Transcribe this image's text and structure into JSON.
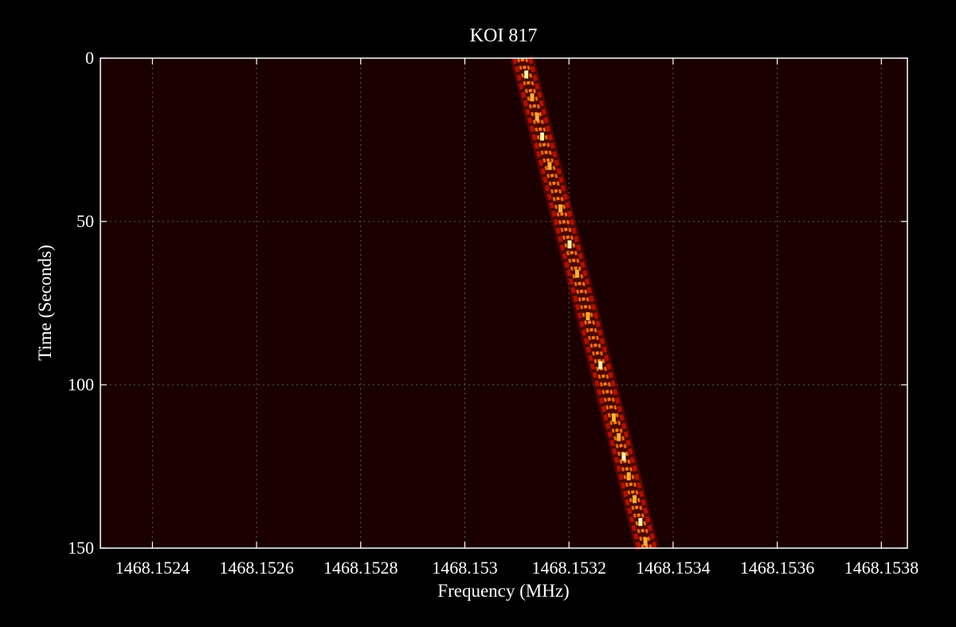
{
  "chart_data": {
    "type": "heatmap",
    "title": "KOI 817",
    "xlabel": "Frequency (MHz)",
    "ylabel": "Time (Seconds)",
    "xlim": [
      1468.1523,
      1468.15385
    ],
    "ylim": [
      0,
      150
    ],
    "y_inverted": true,
    "x_ticks": [
      1468.1524,
      1468.1526,
      1468.1528,
      1468.153,
      1468.1532,
      1468.1534,
      1468.1536,
      1468.1538
    ],
    "x_tick_labels": [
      "1468.1524",
      "1468.1526",
      "1468.1528",
      "1468.153",
      "1468.1532",
      "1468.1534",
      "1468.1536",
      "1468.1538"
    ],
    "y_ticks": [
      0,
      50,
      100,
      150
    ],
    "y_tick_labels": [
      "0",
      "50",
      "100",
      "150"
    ],
    "grid": true,
    "colormap": "hot",
    "series": [
      {
        "time": [
          0,
          150
        ],
        "frequency": [
          1468.15311,
          1468.15335
        ]
      }
    ]
  },
  "colors": {
    "background": "#000000",
    "plot_bg": "#1a0000",
    "axis": "#ffffff",
    "grid": "#5a5a5a",
    "signal_core": "#fff2a8",
    "signal_mid": "#ff7a10",
    "signal_edge": "#b01000"
  }
}
